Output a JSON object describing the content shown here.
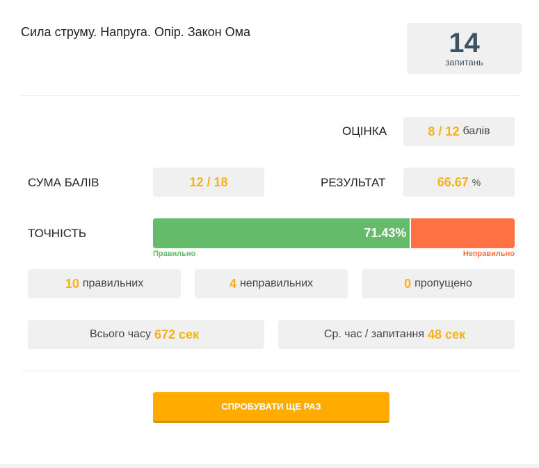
{
  "title": "Сила струму. Напруга. Опір. Закон Ома",
  "questions": {
    "count": "14",
    "label": "запитань"
  },
  "grade": {
    "label": "ОЦІНКА",
    "value": "8 / 12",
    "unit": "балів"
  },
  "score_sum": {
    "label": "СУМА БАЛІВ",
    "value": "12 / 18"
  },
  "result": {
    "label": "РЕЗУЛЬТАТ",
    "value": "66.67",
    "unit": "%"
  },
  "accuracy": {
    "label": "ТОЧНІСТЬ",
    "percent": 71.43,
    "percent_text": "71.43%",
    "correct_label": "Правильно",
    "incorrect_label": "Неправильно",
    "colors": {
      "correct": "#66bb6a",
      "incorrect": "#ff7043"
    }
  },
  "counts": [
    {
      "value": "10",
      "label": "правильних"
    },
    {
      "value": "4",
      "label": "неправильних"
    },
    {
      "value": "0",
      "label": "пропущено"
    }
  ],
  "time": {
    "total_label": "Всього часу",
    "total_value": "672 сек",
    "avg_label": "Ср. час / запитання",
    "avg_value": "48 сек"
  },
  "retry_button": "СПРОБУВАТИ ЩЕ РАЗ",
  "accent": "#fbb018"
}
